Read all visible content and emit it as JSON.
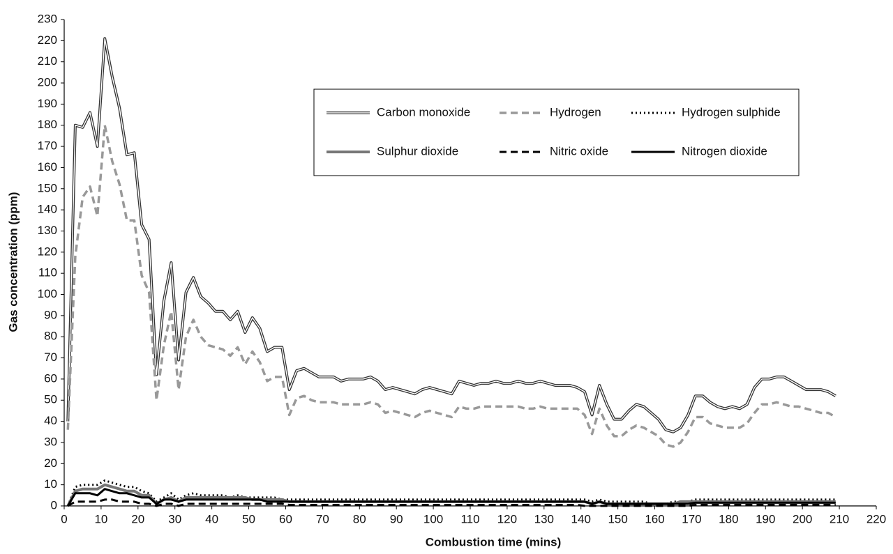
{
  "chart_data": {
    "type": "line",
    "x_label": "Combustion time (mins)",
    "y_label": "Gas concentration (ppm)",
    "xlim": [
      0,
      220
    ],
    "ylim": [
      0,
      230
    ],
    "xticks": [
      0,
      10,
      20,
      30,
      40,
      50,
      60,
      70,
      80,
      90,
      100,
      110,
      120,
      130,
      140,
      150,
      160,
      170,
      180,
      190,
      200,
      210,
      220
    ],
    "yticks": [
      0,
      10,
      20,
      30,
      40,
      50,
      60,
      70,
      80,
      90,
      100,
      110,
      120,
      130,
      140,
      150,
      160,
      170,
      180,
      190,
      200,
      210,
      220,
      230
    ],
    "legend_position": "upper-right",
    "x": [
      1,
      3,
      5,
      7,
      9,
      11,
      13,
      15,
      17,
      19,
      21,
      23,
      25,
      27,
      29,
      31,
      33,
      35,
      37,
      39,
      41,
      43,
      45,
      47,
      49,
      51,
      53,
      55,
      57,
      59,
      61,
      63,
      65,
      67,
      69,
      71,
      73,
      75,
      77,
      79,
      81,
      83,
      85,
      87,
      89,
      91,
      93,
      95,
      97,
      99,
      101,
      103,
      105,
      107,
      109,
      111,
      113,
      115,
      117,
      119,
      121,
      123,
      125,
      127,
      129,
      131,
      133,
      135,
      137,
      139,
      141,
      143,
      145,
      147,
      149,
      151,
      153,
      155,
      157,
      159,
      161,
      163,
      165,
      167,
      169,
      171,
      173,
      175,
      177,
      179,
      181,
      183,
      185,
      187,
      189,
      191,
      193,
      195,
      197,
      199,
      201,
      203,
      205,
      207,
      209
    ],
    "series": [
      {
        "name": "Carbon monoxide",
        "color": "#333333",
        "style": "double",
        "width": 4,
        "values": [
          40,
          180,
          179,
          186,
          170,
          221,
          203,
          188,
          166,
          167,
          133,
          126,
          62,
          97,
          115,
          69,
          101,
          108,
          99,
          96,
          92,
          92,
          88,
          92,
          82,
          89,
          84,
          73,
          75,
          75,
          55,
          64,
          65,
          63,
          61,
          61,
          61,
          59,
          60,
          60,
          60,
          61,
          59,
          55,
          56,
          55,
          54,
          53,
          55,
          56,
          55,
          54,
          53,
          59,
          58,
          57,
          58,
          58,
          59,
          58,
          58,
          59,
          58,
          58,
          59,
          58,
          57,
          57,
          57,
          56,
          54,
          43,
          57,
          48,
          41,
          41,
          45,
          48,
          47,
          44,
          41,
          36,
          35,
          37,
          43,
          52,
          52,
          49,
          47,
          46,
          47,
          46,
          48,
          56,
          60,
          60,
          61,
          61,
          59,
          57,
          55,
          55,
          55,
          54,
          52
        ]
      },
      {
        "name": "Hydrogen",
        "color": "#999999",
        "style": "dashed",
        "width": 3.5,
        "values": [
          36,
          118,
          146,
          151,
          137,
          180,
          163,
          152,
          135,
          135,
          109,
          101,
          50,
          76,
          92,
          55,
          80,
          88,
          80,
          76,
          75,
          74,
          71,
          75,
          67,
          73,
          68,
          59,
          61,
          61,
          43,
          51,
          52,
          50,
          49,
          49,
          49,
          48,
          48,
          48,
          48,
          49,
          48,
          44,
          45,
          44,
          43,
          42,
          44,
          45,
          44,
          43,
          42,
          47,
          46,
          46,
          47,
          47,
          47,
          47,
          47,
          47,
          46,
          46,
          47,
          46,
          46,
          46,
          46,
          46,
          43,
          34,
          46,
          38,
          33,
          33,
          36,
          38,
          37,
          35,
          33,
          29,
          28,
          30,
          35,
          42,
          42,
          39,
          38,
          37,
          37,
          37,
          39,
          44,
          48,
          48,
          49,
          48,
          47,
          47,
          46,
          45,
          44,
          44,
          42
        ]
      },
      {
        "name": "Hydrogen sulphide",
        "color": "#000000",
        "style": "dotted",
        "width": 3,
        "values": [
          0,
          9,
          10,
          10,
          10,
          12,
          11,
          10,
          9,
          9,
          7,
          6,
          2,
          4,
          6,
          3,
          5,
          6,
          5,
          5,
          5,
          5,
          4,
          5,
          4,
          4,
          4,
          4,
          4,
          3,
          3,
          3,
          3,
          3,
          3,
          3,
          3,
          3,
          3,
          3,
          3,
          3,
          3,
          3,
          3,
          3,
          3,
          3,
          3,
          3,
          3,
          3,
          3,
          3,
          3,
          3,
          3,
          3,
          3,
          3,
          3,
          3,
          3,
          3,
          3,
          3,
          3,
          3,
          3,
          3,
          3,
          2,
          3,
          2,
          2,
          2,
          2,
          2,
          2,
          1,
          1,
          1,
          2,
          2,
          2,
          3,
          3,
          3,
          3,
          3,
          3,
          3,
          3,
          3,
          3,
          3,
          3,
          3,
          3,
          3,
          3,
          3,
          3,
          3,
          3
        ]
      },
      {
        "name": "Sulphur dioxide",
        "color": "#777777",
        "style": "solid",
        "width": 4,
        "values": [
          0,
          7,
          8,
          8,
          8,
          10,
          9,
          8,
          7,
          7,
          5,
          5,
          1,
          3,
          4,
          2,
          4,
          4,
          4,
          4,
          4,
          4,
          4,
          4,
          4,
          3,
          3,
          3,
          3,
          3,
          2,
          2,
          2,
          2,
          2,
          2,
          2,
          2,
          2,
          2,
          2,
          2,
          2,
          2,
          2,
          2,
          2,
          2,
          2,
          2,
          2,
          2,
          2,
          2,
          2,
          2,
          2,
          2,
          2,
          2,
          2,
          2,
          2,
          2,
          2,
          2,
          2,
          2,
          2,
          2,
          2,
          1,
          2,
          1,
          1,
          1,
          1,
          1,
          1,
          1,
          1,
          1,
          1,
          2,
          2,
          2,
          2,
          2,
          2,
          2,
          2,
          2,
          2,
          2,
          2,
          2,
          2,
          2,
          2,
          2,
          2,
          2,
          2,
          2,
          2
        ]
      },
      {
        "name": "Nitric oxide",
        "color": "#000000",
        "style": "dashed",
        "width": 3,
        "values": [
          0,
          2,
          2,
          2,
          2,
          3,
          3,
          2,
          2,
          2,
          1,
          1,
          0,
          1,
          1,
          0,
          1,
          1,
          1,
          1,
          1,
          1,
          1,
          1,
          1,
          1,
          1,
          1,
          1,
          1,
          0.5,
          0.5,
          0.5,
          0.5,
          0.5,
          0.5,
          0.5,
          0.5,
          0.5,
          0.5,
          0.5,
          0.5,
          0.5,
          0.5,
          0.5,
          0.5,
          0.5,
          0.5,
          0.5,
          0.5,
          0.5,
          0.5,
          0.5,
          0.5,
          0.5,
          0.5,
          0.5,
          0.5,
          0.5,
          0.5,
          0.5,
          0.5,
          0.5,
          0.5,
          0.5,
          0.5,
          0.5,
          0.5,
          0.5,
          0.5,
          0,
          0,
          0,
          0,
          0,
          0,
          0,
          0,
          0,
          0,
          0,
          0,
          0,
          0,
          0,
          0.5,
          0.5,
          0.5,
          0.5,
          0.5,
          0.5,
          0.5,
          0.5,
          0.5,
          0.5,
          0.5,
          0.5,
          0.5,
          0.5,
          0.5,
          0.5,
          0.5,
          0.5,
          0.5,
          0.5
        ]
      },
      {
        "name": "Nitrogen dioxide",
        "color": "#000000",
        "style": "solid",
        "width": 3,
        "values": [
          0,
          6,
          6,
          6,
          5,
          8,
          7,
          6,
          6,
          5,
          4,
          4,
          1,
          3,
          3,
          2,
          3,
          3,
          3,
          3,
          3,
          3,
          3,
          3,
          3,
          3,
          3,
          2,
          2,
          2,
          2,
          2,
          2,
          2,
          2,
          2,
          2,
          2,
          2,
          2,
          2,
          2,
          2,
          2,
          2,
          2,
          2,
          2,
          2,
          2,
          2,
          2,
          2,
          2,
          2,
          2,
          2,
          2,
          2,
          2,
          2,
          2,
          2,
          2,
          2,
          2,
          2,
          2,
          2,
          2,
          2,
          1,
          2,
          1,
          1,
          1,
          1,
          1,
          1,
          1,
          1,
          1,
          1,
          1,
          1,
          1.5,
          1.5,
          1.5,
          1.5,
          1.5,
          1.5,
          1.5,
          1.5,
          1.5,
          1.5,
          1.5,
          1.5,
          1.5,
          1.5,
          1.5,
          1.5,
          1.5,
          1.5,
          1.5,
          1.5
        ]
      }
    ]
  }
}
